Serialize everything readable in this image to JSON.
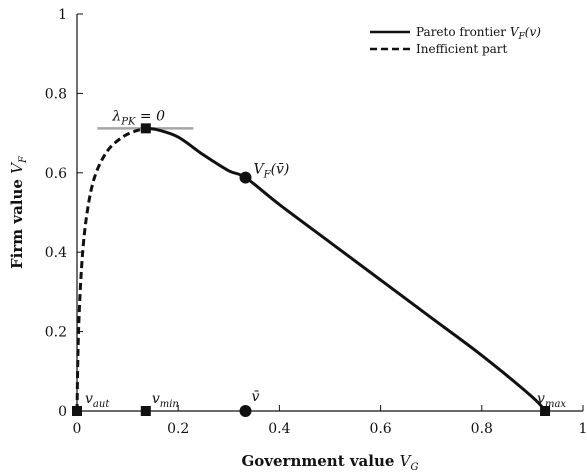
{
  "chart_data": {
    "type": "line",
    "xlabel": "Government value V_G",
    "ylabel": "Firm value V_F",
    "xlim": [
      0,
      1
    ],
    "ylim": [
      0,
      1
    ],
    "x_ticks": [
      "0",
      "0.2",
      "0.4",
      "0.6",
      "0.8",
      "1"
    ],
    "y_ticks": [
      "0",
      "0.2",
      "0.4",
      "0.6",
      "0.8",
      "1"
    ],
    "legend_position": "top-right",
    "series": [
      {
        "name": "Pareto frontier V_F(v)",
        "style": "solid",
        "x": [
          0.136,
          0.16,
          0.2,
          0.25,
          0.3,
          0.333,
          0.4,
          0.5,
          0.6,
          0.7,
          0.8,
          0.9,
          0.925
        ],
        "y": [
          0.712,
          0.708,
          0.69,
          0.645,
          0.605,
          0.588,
          0.52,
          0.425,
          0.33,
          0.235,
          0.14,
          0.035,
          0.0
        ]
      },
      {
        "name": "Inefficient part",
        "style": "dashed",
        "x": [
          0.0,
          0.003,
          0.01,
          0.02,
          0.035,
          0.06,
          0.09,
          0.115,
          0.136
        ],
        "y": [
          0.0,
          0.2,
          0.38,
          0.5,
          0.59,
          0.655,
          0.69,
          0.705,
          0.712
        ]
      }
    ],
    "points": [
      {
        "label": "v_aut",
        "x": 0.0,
        "y": 0.0,
        "marker": "square"
      },
      {
        "label": "v_min",
        "x": 0.136,
        "y": 0.0,
        "marker": "square"
      },
      {
        "label": "v̄",
        "x": 0.333,
        "y": 0.0,
        "marker": "circle"
      },
      {
        "label": "v_max",
        "x": 0.925,
        "y": 0.0,
        "marker": "square"
      },
      {
        "label": "V_F(v̄)",
        "x": 0.333,
        "y": 0.588,
        "marker": "circle"
      },
      {
        "label": "",
        "x": 0.136,
        "y": 0.712,
        "marker": "square"
      }
    ],
    "tangent": {
      "label": "λ_PK = 0",
      "x": [
        0.04,
        0.23
      ],
      "y": 0.712,
      "color": "#a6a6a6"
    }
  },
  "colors": {
    "line": "#111111",
    "tangent": "#a6a6a6"
  }
}
